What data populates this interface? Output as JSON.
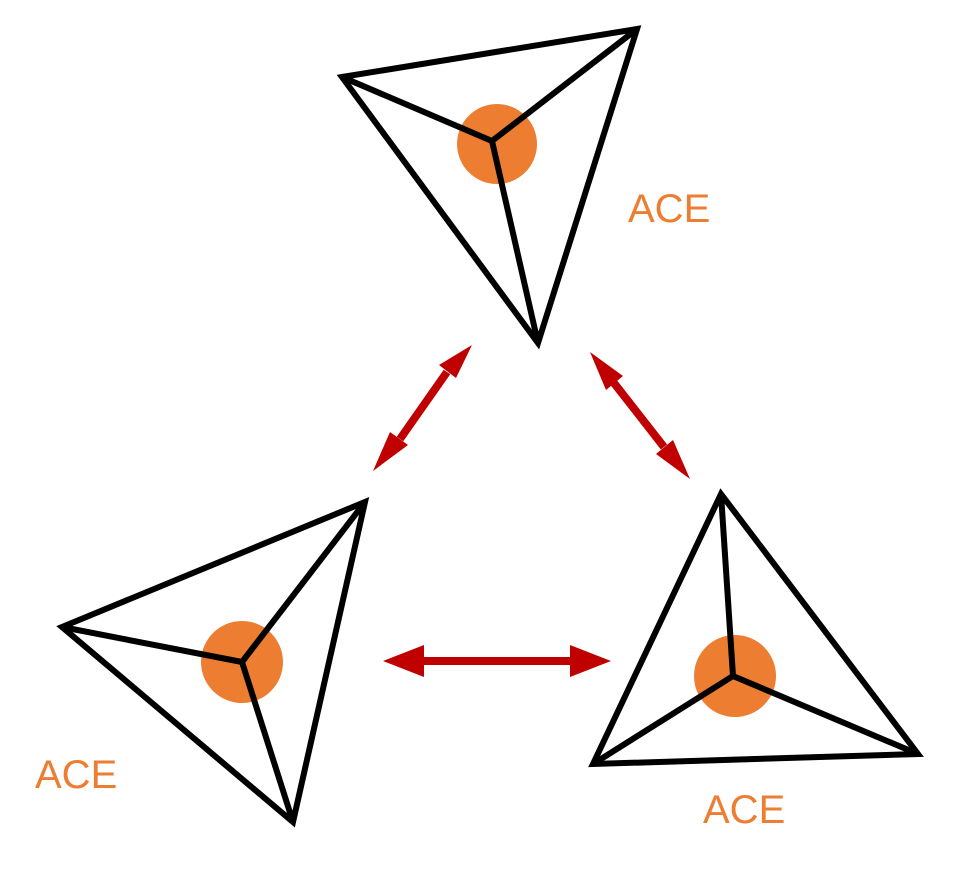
{
  "diagram": {
    "nodes": [
      {
        "id": "top",
        "label": "ACE"
      },
      {
        "id": "bottom-left",
        "label": "ACE"
      },
      {
        "id": "bottom-right",
        "label": "ACE"
      }
    ],
    "connections": [
      {
        "from": "top",
        "to": "bottom-left",
        "type": "bidirectional"
      },
      {
        "from": "top",
        "to": "bottom-right",
        "type": "bidirectional"
      },
      {
        "from": "bottom-left",
        "to": "bottom-right",
        "type": "bidirectional"
      }
    ],
    "colors": {
      "core": "#ED7D31",
      "label": "#ED7D31",
      "arrow": "#C00000",
      "outline": "#000000"
    }
  }
}
